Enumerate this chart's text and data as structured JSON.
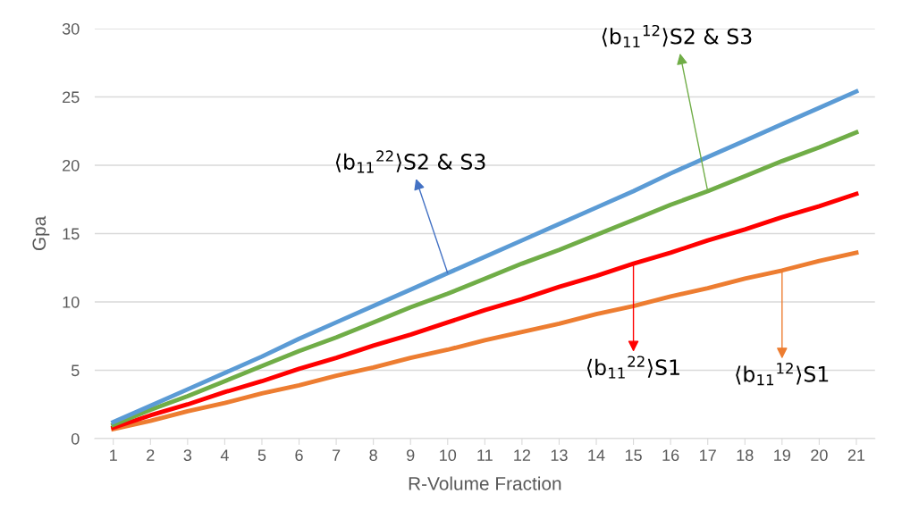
{
  "chart_data": {
    "type": "line",
    "xlabel": "R-Volume Fraction",
    "ylabel": "Gpa",
    "categories": [
      "1",
      "2",
      "3",
      "4",
      "5",
      "6",
      "7",
      "8",
      "9",
      "10",
      "11",
      "12",
      "13",
      "14",
      "15",
      "16",
      "17",
      "18",
      "19",
      "20",
      "21"
    ],
    "series": [
      {
        "color": "#5b9bd5",
        "values": [
          1.2,
          2.4,
          3.6,
          4.8,
          6.0,
          7.3,
          8.5,
          9.7,
          10.9,
          12.1,
          13.3,
          14.5,
          15.7,
          16.9,
          18.1,
          19.4,
          20.6,
          21.8,
          23.0,
          24.2,
          25.4
        ]
      },
      {
        "color": "#70ad47",
        "values": [
          1.0,
          2.1,
          3.1,
          4.2,
          5.3,
          6.4,
          7.4,
          8.5,
          9.6,
          10.6,
          11.7,
          12.8,
          13.8,
          14.9,
          16.0,
          17.1,
          18.1,
          19.2,
          20.3,
          21.3,
          22.4
        ]
      },
      {
        "color": "#ff0000",
        "values": [
          0.8,
          1.7,
          2.5,
          3.4,
          4.2,
          5.1,
          5.9,
          6.8,
          7.6,
          8.5,
          9.4,
          10.2,
          11.1,
          11.9,
          12.8,
          13.6,
          14.5,
          15.3,
          16.2,
          17.0,
          17.9
        ]
      },
      {
        "color": "#ed7d31",
        "values": [
          0.7,
          1.3,
          2.0,
          2.6,
          3.3,
          3.9,
          4.6,
          5.2,
          5.9,
          6.5,
          7.2,
          7.8,
          8.4,
          9.1,
          9.7,
          10.4,
          11.0,
          11.7,
          12.3,
          13.0,
          13.6
        ]
      }
    ],
    "annotations": [
      {
        "text": "⟨b$_{11}$$^{22}$⟩S2 & S3",
        "x": "10",
        "y": 12.1
      },
      {
        "text": "⟨b$_{11}$$^{12}$⟩S2 & S3",
        "x": "17",
        "y": 18.1
      },
      {
        "text": "⟨b$_{11}$$^{22}$⟩S1",
        "x": "15",
        "y": 12.8
      },
      {
        "text": "⟨b$_{11}$$^{12}$⟩S1",
        "x": "19",
        "y": 12.3
      }
    ],
    "ylim": [
      0,
      30
    ],
    "yticks": [
      0,
      5,
      10,
      15,
      20,
      25,
      30
    ],
    "grid": "y",
    "marker": "none",
    "line_style": "solid"
  }
}
